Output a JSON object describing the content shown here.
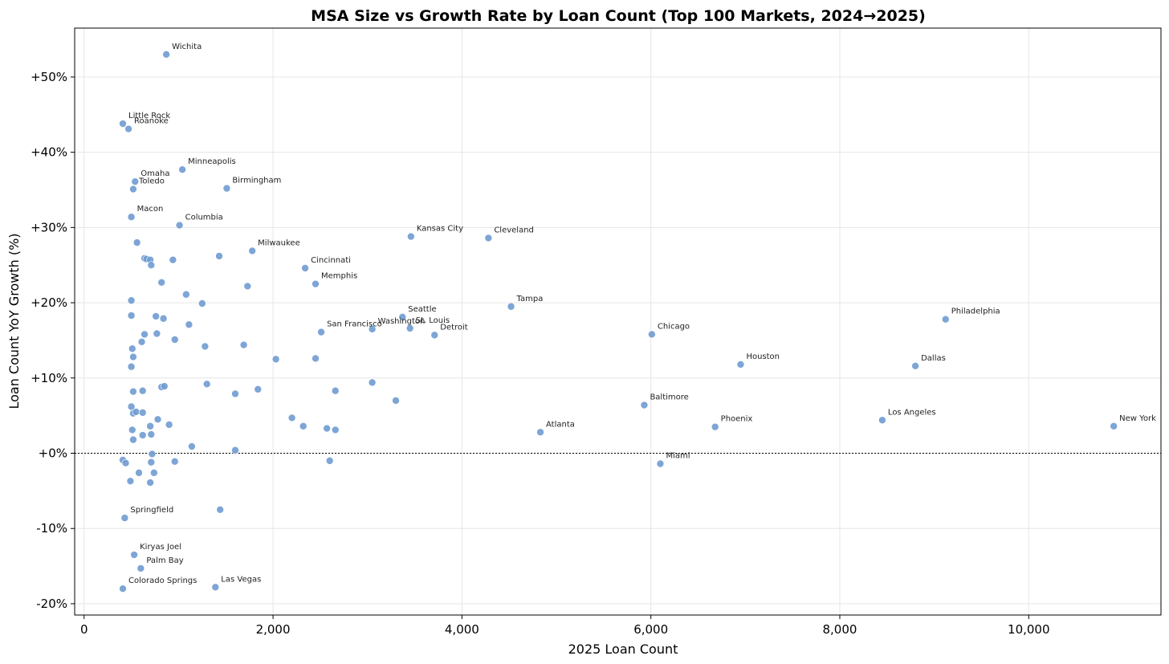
{
  "chart_data": {
    "type": "scatter",
    "title": "MSA Size vs Growth Rate by Loan Count (Top 100 Markets, 2024→2025)",
    "xlabel": "2025 Loan Count",
    "ylabel": "Loan Count YoY Growth (%)",
    "xlim": [
      -100,
      11400
    ],
    "ylim": [
      -21.5,
      56.5
    ],
    "x_ticks": [
      0,
      2000,
      4000,
      6000,
      8000,
      10000
    ],
    "x_tick_labels": [
      "0",
      "2,000",
      "4,000",
      "6,000",
      "8,000",
      "10,000"
    ],
    "y_ticks": [
      -20,
      -10,
      0,
      10,
      20,
      30,
      40,
      50
    ],
    "y_tick_labels": [
      "-20%",
      "-10%",
      "+0%",
      "+10%",
      "+20%",
      "+30%",
      "+40%",
      "+50%"
    ],
    "grid": true,
    "reference_line": 0,
    "point_color": "#6f9bd1",
    "points": [
      {
        "x": 870,
        "y": 53.0,
        "label": "Wichita"
      },
      {
        "x": 410,
        "y": 43.8,
        "label": "Little Rock"
      },
      {
        "x": 470,
        "y": 43.1,
        "label": "Roanoke"
      },
      {
        "x": 1040,
        "y": 37.7,
        "label": "Minneapolis"
      },
      {
        "x": 540,
        "y": 36.1,
        "label": "Omaha"
      },
      {
        "x": 520,
        "y": 35.1,
        "label": "Toledo"
      },
      {
        "x": 1510,
        "y": 35.2,
        "label": "Birmingham"
      },
      {
        "x": 500,
        "y": 31.4,
        "label": "Macon"
      },
      {
        "x": 1010,
        "y": 30.3,
        "label": "Columbia"
      },
      {
        "x": 3460,
        "y": 28.8,
        "label": "Kansas City"
      },
      {
        "x": 4280,
        "y": 28.6,
        "label": "Cleveland"
      },
      {
        "x": 1780,
        "y": 26.9,
        "label": "Milwaukee"
      },
      {
        "x": 2340,
        "y": 24.6,
        "label": "Cincinnati"
      },
      {
        "x": 2450,
        "y": 22.5,
        "label": "Memphis"
      },
      {
        "x": 4520,
        "y": 19.5,
        "label": "Tampa"
      },
      {
        "x": 3370,
        "y": 18.1,
        "label": "Seattle"
      },
      {
        "x": 3050,
        "y": 16.5,
        "label": "Washington"
      },
      {
        "x": 3450,
        "y": 16.6,
        "label": "St. Louis"
      },
      {
        "x": 3710,
        "y": 15.7,
        "label": "Detroit"
      },
      {
        "x": 2510,
        "y": 16.1,
        "label": "San Francisco"
      },
      {
        "x": 9120,
        "y": 17.8,
        "label": "Philadelphia"
      },
      {
        "x": 6010,
        "y": 15.8,
        "label": "Chicago"
      },
      {
        "x": 6950,
        "y": 11.8,
        "label": "Houston"
      },
      {
        "x": 8800,
        "y": 11.6,
        "label": "Dallas"
      },
      {
        "x": 5930,
        "y": 6.4,
        "label": "Baltimore"
      },
      {
        "x": 8450,
        "y": 4.4,
        "label": "Los Angeles"
      },
      {
        "x": 10900,
        "y": 3.6,
        "label": "New York"
      },
      {
        "x": 6680,
        "y": 3.5,
        "label": "Phoenix"
      },
      {
        "x": 4830,
        "y": 2.8,
        "label": "Atlanta"
      },
      {
        "x": 6100,
        "y": -1.4,
        "label": "Miami"
      },
      {
        "x": 430,
        "y": -8.6,
        "label": "Springfield"
      },
      {
        "x": 530,
        "y": -13.5,
        "label": "Kiryas Joel"
      },
      {
        "x": 600,
        "y": -15.3,
        "label": "Palm Bay"
      },
      {
        "x": 410,
        "y": -18.0,
        "label": "Colorado Springs"
      },
      {
        "x": 1390,
        "y": -17.8,
        "label": "Las Vegas"
      },
      {
        "x": 560,
        "y": 28.0
      },
      {
        "x": 640,
        "y": 25.9
      },
      {
        "x": 660,
        "y": 25.8
      },
      {
        "x": 700,
        "y": 25.7
      },
      {
        "x": 710,
        "y": 25.0
      },
      {
        "x": 940,
        "y": 25.7
      },
      {
        "x": 1430,
        "y": 26.2
      },
      {
        "x": 820,
        "y": 22.7
      },
      {
        "x": 1730,
        "y": 22.2
      },
      {
        "x": 500,
        "y": 20.3
      },
      {
        "x": 1080,
        "y": 21.1
      },
      {
        "x": 1250,
        "y": 19.9
      },
      {
        "x": 500,
        "y": 18.3
      },
      {
        "x": 760,
        "y": 18.2
      },
      {
        "x": 840,
        "y": 17.9
      },
      {
        "x": 1110,
        "y": 17.1
      },
      {
        "x": 640,
        "y": 15.8
      },
      {
        "x": 770,
        "y": 15.9
      },
      {
        "x": 610,
        "y": 14.8
      },
      {
        "x": 960,
        "y": 15.1
      },
      {
        "x": 1280,
        "y": 14.2
      },
      {
        "x": 1690,
        "y": 14.4
      },
      {
        "x": 510,
        "y": 13.9
      },
      {
        "x": 520,
        "y": 12.8
      },
      {
        "x": 2030,
        "y": 12.5
      },
      {
        "x": 2450,
        "y": 12.6
      },
      {
        "x": 500,
        "y": 11.5
      },
      {
        "x": 520,
        "y": 8.2
      },
      {
        "x": 620,
        "y": 8.3
      },
      {
        "x": 820,
        "y": 8.8
      },
      {
        "x": 850,
        "y": 8.9
      },
      {
        "x": 1300,
        "y": 9.2
      },
      {
        "x": 1600,
        "y": 7.9
      },
      {
        "x": 1840,
        "y": 8.5
      },
      {
        "x": 2660,
        "y": 8.3
      },
      {
        "x": 3050,
        "y": 9.4
      },
      {
        "x": 3300,
        "y": 7.0
      },
      {
        "x": 500,
        "y": 6.2
      },
      {
        "x": 520,
        "y": 5.3
      },
      {
        "x": 550,
        "y": 5.5
      },
      {
        "x": 620,
        "y": 5.4
      },
      {
        "x": 780,
        "y": 4.5
      },
      {
        "x": 900,
        "y": 3.8
      },
      {
        "x": 700,
        "y": 3.6
      },
      {
        "x": 2200,
        "y": 4.7
      },
      {
        "x": 2320,
        "y": 3.6
      },
      {
        "x": 2570,
        "y": 3.3
      },
      {
        "x": 2660,
        "y": 3.1
      },
      {
        "x": 510,
        "y": 3.1
      },
      {
        "x": 620,
        "y": 2.4
      },
      {
        "x": 710,
        "y": 2.5
      },
      {
        "x": 520,
        "y": 1.8
      },
      {
        "x": 1140,
        "y": 0.9
      },
      {
        "x": 1600,
        "y": 0.4
      },
      {
        "x": 720,
        "y": -0.1
      },
      {
        "x": 410,
        "y": -0.9
      },
      {
        "x": 440,
        "y": -1.3
      },
      {
        "x": 710,
        "y": -1.2
      },
      {
        "x": 960,
        "y": -1.1
      },
      {
        "x": 2600,
        "y": -1.0
      },
      {
        "x": 580,
        "y": -2.6
      },
      {
        "x": 740,
        "y": -2.6
      },
      {
        "x": 490,
        "y": -3.7
      },
      {
        "x": 700,
        "y": -3.9
      },
      {
        "x": 1440,
        "y": -7.5
      }
    ]
  }
}
